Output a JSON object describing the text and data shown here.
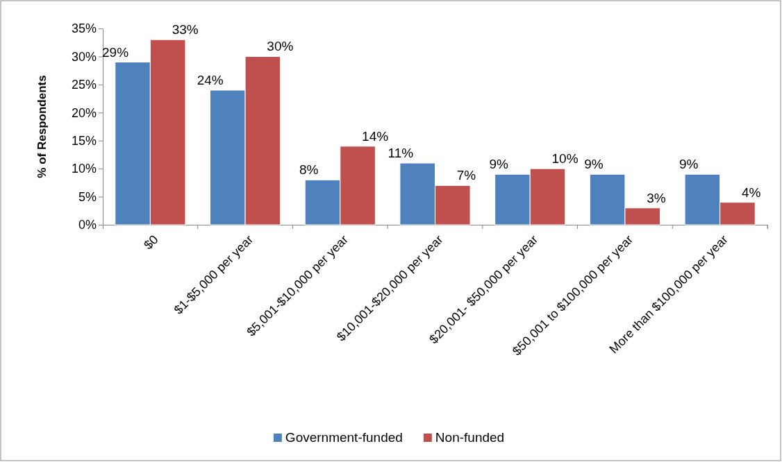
{
  "chart_data": {
    "type": "bar",
    "ylabel": "% of Respondents",
    "categories": [
      "$0",
      "$1-$5,000 per year",
      "$5,001-$10,000 per year",
      "$10,001-$20,000 per year",
      "$20,001- $50,000 per year",
      "$50,001 to $100,000 per year",
      "More than $100,000 per year"
    ],
    "series": [
      {
        "name": "Government-funded",
        "color": "#4f81bd",
        "values": [
          29,
          24,
          8,
          11,
          9,
          9,
          9
        ],
        "value_labels": [
          "29%",
          "24%",
          "8%",
          "11%",
          "9%",
          "9%",
          "9%"
        ]
      },
      {
        "name": "Non-funded",
        "color": "#c0504d",
        "values": [
          33,
          30,
          14,
          7,
          10,
          3,
          4
        ],
        "value_labels": [
          "33%",
          "30%",
          "14%",
          "7%",
          "10%",
          "3%",
          "4%"
        ]
      }
    ],
    "ylim": [
      0,
      35
    ],
    "yticks": [
      {
        "value": 0,
        "label": "0%"
      },
      {
        "value": 5,
        "label": "5%"
      },
      {
        "value": 10,
        "label": "10%"
      },
      {
        "value": 15,
        "label": "15%"
      },
      {
        "value": 20,
        "label": "20%"
      },
      {
        "value": 25,
        "label": "25%"
      },
      {
        "value": 30,
        "label": "30%"
      },
      {
        "value": 35,
        "label": "35%"
      }
    ],
    "grid": false,
    "legend": "bottom"
  }
}
